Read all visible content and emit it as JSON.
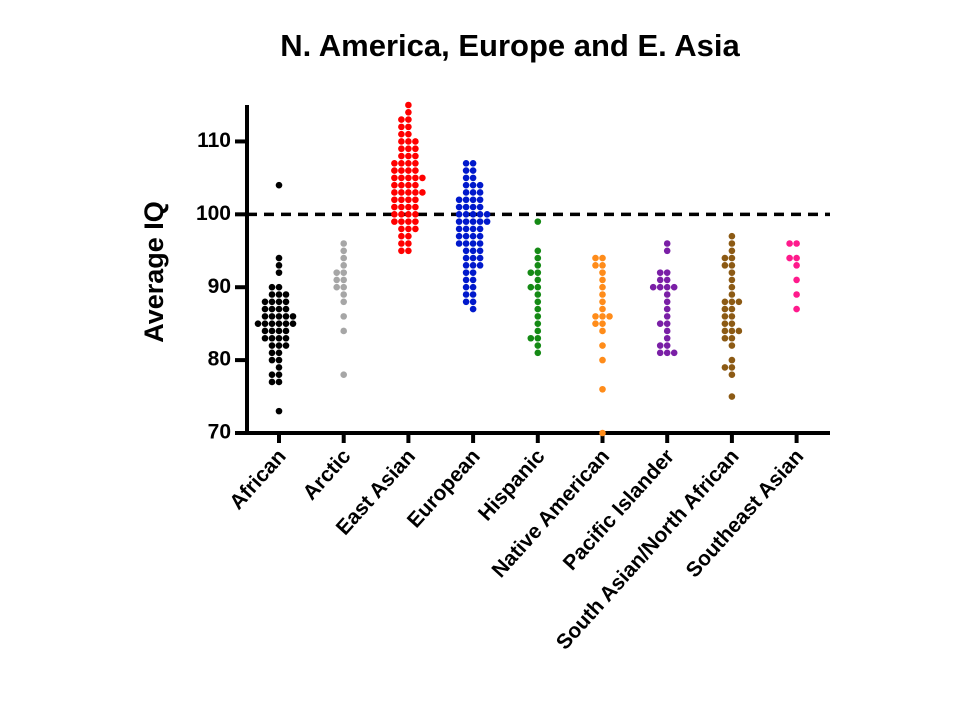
{
  "chart_data": {
    "type": "dot",
    "title": "N. America,  Europe and  E. Asia",
    "y_label": "Average IQ",
    "categories": [
      "African",
      "Arctic",
      "East Asian",
      "European",
      "Hispanic",
      "Native American",
      "Pacific Islander",
      "South Asian/North African",
      "Southeast Asian"
    ],
    "colors": [
      "#000000",
      "#a6a6a6",
      "#ff0000",
      "#0019cc",
      "#158a15",
      "#ff8c1a",
      "#7a1fa6",
      "#8c5a14",
      "#ff1a8c"
    ],
    "values": [
      [
        104,
        94,
        93,
        92,
        90,
        90,
        89,
        89,
        89,
        88,
        88,
        88,
        88,
        87,
        87,
        87,
        87,
        86,
        86,
        86,
        86,
        86,
        85,
        85,
        85,
        85,
        85,
        85,
        84,
        84,
        84,
        84,
        83,
        83,
        83,
        83,
        82,
        82,
        82,
        81,
        81,
        80,
        80,
        79,
        78,
        78,
        77,
        77,
        73
      ],
      [
        96,
        95,
        94,
        93,
        92,
        92,
        91,
        91,
        90,
        90,
        89,
        88,
        86,
        84,
        78
      ],
      [
        115,
        114,
        113,
        113,
        112,
        112,
        111,
        111,
        110,
        110,
        110,
        109,
        109,
        109,
        108,
        108,
        108,
        107,
        107,
        107,
        107,
        106,
        106,
        106,
        106,
        105,
        105,
        105,
        105,
        105,
        104,
        104,
        104,
        104,
        103,
        103,
        103,
        103,
        103,
        102,
        102,
        102,
        102,
        101,
        101,
        101,
        101,
        100,
        100,
        100,
        100,
        99,
        99,
        99,
        99,
        98,
        98,
        98,
        97,
        97,
        96,
        96,
        95,
        95
      ],
      [
        107,
        107,
        106,
        106,
        105,
        105,
        104,
        104,
        104,
        103,
        103,
        103,
        102,
        102,
        102,
        102,
        101,
        101,
        101,
        101,
        100,
        100,
        100,
        100,
        100,
        99,
        99,
        99,
        99,
        99,
        98,
        98,
        98,
        98,
        97,
        97,
        97,
        97,
        96,
        96,
        96,
        96,
        95,
        95,
        95,
        94,
        94,
        94,
        93,
        93,
        93,
        92,
        92,
        91,
        91,
        90,
        90,
        89,
        89,
        88,
        88,
        87
      ],
      [
        99,
        95,
        94,
        93,
        92,
        92,
        91,
        90,
        90,
        89,
        88,
        87,
        86,
        85,
        84,
        83,
        83,
        82,
        81
      ],
      [
        94,
        94,
        93,
        93,
        92,
        91,
        90,
        89,
        88,
        87,
        86,
        86,
        86,
        85,
        85,
        84,
        82,
        80,
        76,
        70
      ],
      [
        96,
        95,
        92,
        92,
        91,
        91,
        90,
        90,
        90,
        90,
        89,
        88,
        87,
        86,
        85,
        85,
        84,
        83,
        82,
        82,
        81,
        81,
        81
      ],
      [
        97,
        96,
        95,
        94,
        94,
        93,
        93,
        92,
        91,
        90,
        89,
        88,
        88,
        88,
        87,
        87,
        86,
        86,
        85,
        85,
        84,
        84,
        84,
        83,
        83,
        82,
        80,
        79,
        79,
        78,
        75
      ],
      [
        96,
        96,
        94,
        94,
        93,
        91,
        89,
        87
      ]
    ],
    "ylim": [
      70,
      115
    ],
    "yticks": [
      70,
      80,
      90,
      100,
      110
    ],
    "reference_line": 100
  }
}
